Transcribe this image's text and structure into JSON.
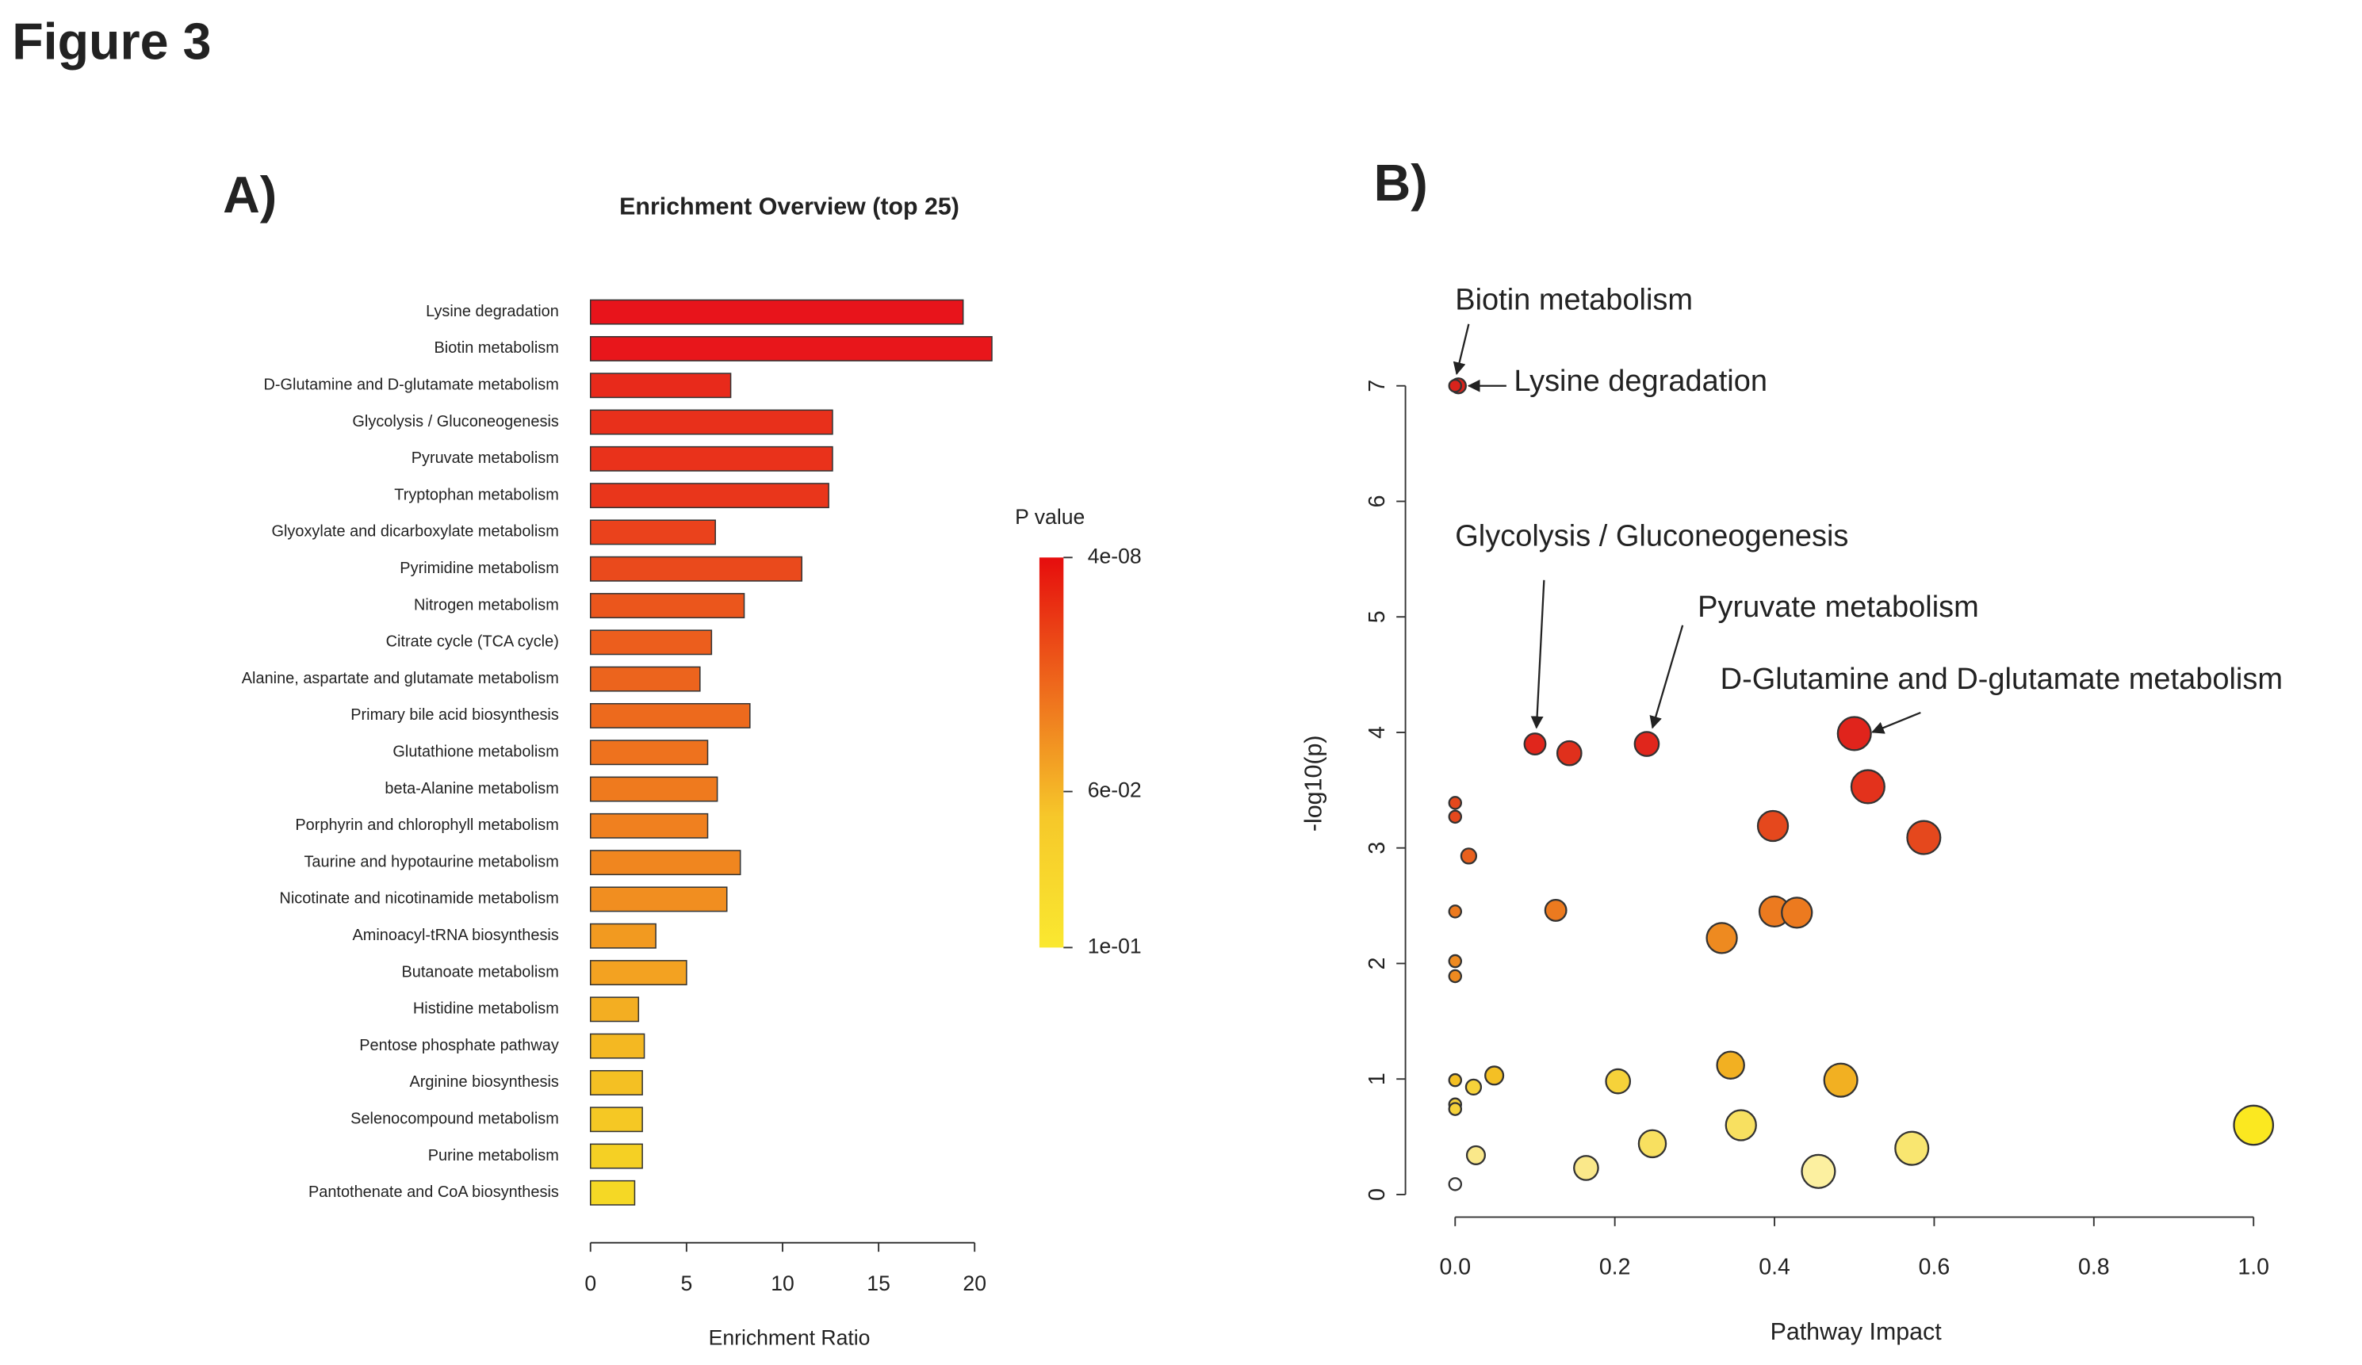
{
  "figure_title": "Figure 3",
  "panel_labels": [
    "A)",
    "B)"
  ],
  "chart_data": [
    {
      "type": "bar",
      "orientation": "horizontal",
      "title": "Enrichment Overview (top 25)",
      "x_label": "Enrichment Ratio",
      "categories": [
        "Lysine degradation",
        "Biotin metabolism",
        "D-Glutamine and D-glutamate metabolism",
        "Glycolysis / Gluconeogenesis",
        "Pyruvate metabolism",
        "Tryptophan metabolism",
        "Glyoxylate and dicarboxylate metabolism",
        "Pyrimidine metabolism",
        "Nitrogen metabolism",
        "Citrate cycle (TCA cycle)",
        "Alanine, aspartate and glutamate metabolism",
        "Primary bile acid biosynthesis",
        "Glutathione metabolism",
        "beta-Alanine metabolism",
        "Porphyrin and chlorophyll metabolism",
        "Taurine and hypotaurine metabolism",
        "Nicotinate and nicotinamide metabolism",
        "Aminoacyl-tRNA biosynthesis",
        "Butanoate metabolism",
        "Histidine metabolism",
        "Pentose phosphate pathway",
        "Arginine biosynthesis",
        "Selenocompound metabolism",
        "Purine metabolism",
        "Pantothenate and CoA biosynthesis"
      ],
      "values": [
        19.4,
        20.9,
        7.3,
        12.6,
        12.6,
        12.4,
        6.5,
        11.0,
        8.0,
        6.3,
        5.7,
        8.3,
        6.1,
        6.6,
        6.1,
        7.8,
        7.1,
        3.4,
        5.0,
        2.5,
        2.8,
        2.7,
        2.7,
        2.7,
        2.3
      ],
      "colors": [
        "#e8141b",
        "#e8161b",
        "#e82a1b",
        "#e8301b",
        "#e9321b",
        "#e9361b",
        "#ea421c",
        "#ea4a1c",
        "#eb561c",
        "#ec5e1d",
        "#ec641d",
        "#ed6a1d",
        "#ee721e",
        "#ef7a1e",
        "#f0801f",
        "#f0861f",
        "#f18e20",
        "#f29a20",
        "#f3a221",
        "#f3ae22",
        "#f4b822",
        "#f4c023",
        "#f5c824",
        "#f5d024",
        "#f5d825"
      ],
      "xlim": [
        0,
        21
      ],
      "xticks": [
        0,
        5,
        10,
        15,
        20
      ],
      "colorbar": {
        "title": "P value",
        "clim": [
          4e-08,
          0.1
        ],
        "colors": [
          "#e60d0d",
          "#ee6a1c",
          "#f6c82a",
          "#fae830"
        ],
        "ticks": [
          {
            "value": 4e-08,
            "label": "4e-08"
          },
          {
            "value": 0.06,
            "label": "6e-02"
          },
          {
            "value": 0.1,
            "label": "1e-01"
          }
        ]
      }
    },
    {
      "type": "scatter",
      "x_label": "Pathway Impact",
      "y_label": "-log10(p)",
      "xlim": [
        0,
        1
      ],
      "ylim": [
        0,
        7
      ],
      "xticks": [
        {
          "value": 0,
          "label": "0.0"
        },
        0.2,
        0.4,
        0.6,
        0.8,
        {
          "value": 1,
          "label": "1.0"
        }
      ],
      "yticks": [
        0,
        1,
        2,
        3,
        4,
        5,
        6,
        7
      ],
      "x": [
        0.004,
        0.0,
        0.1,
        0.143,
        0.24,
        0.5,
        0.517,
        0.587,
        0.398,
        0,
        0,
        0.017,
        0,
        0.126,
        0.4,
        0.428,
        0.334,
        0,
        0,
        0,
        0.023,
        0.049,
        0.204,
        0.345,
        0.483,
        0,
        0,
        0.026,
        0.164,
        0.247,
        0.358,
        0.455,
        0.572,
        1.0,
        0
      ],
      "y": [
        7.0,
        7.0,
        3.9,
        3.82,
        3.9,
        3.99,
        3.53,
        3.09,
        3.19,
        3.39,
        3.27,
        2.93,
        2.45,
        2.46,
        2.45,
        2.44,
        2.22,
        2.02,
        1.89,
        0.99,
        0.93,
        1.03,
        0.98,
        1.12,
        0.99,
        0.78,
        0.74,
        0.34,
        0.23,
        0.44,
        0.6,
        0.2,
        0.4,
        0.6,
        0.09
      ],
      "sizes": [
        5,
        4,
        7,
        8,
        8,
        11,
        11,
        11,
        10,
        4,
        4,
        5,
        4,
        7,
        10,
        10,
        10,
        4,
        4,
        4,
        5,
        6,
        8,
        9,
        11,
        4,
        4,
        6,
        8,
        9,
        10,
        11,
        11,
        13,
        4
      ],
      "colors": [
        "#d9231c",
        "#d9231c",
        "#e0261c",
        "#e0301c",
        "#e0261c",
        "#e0241c",
        "#e3321c",
        "#e5481d",
        "#e5481d",
        "#e5481d",
        "#e5481d",
        "#e8601e",
        "#ec7a1f",
        "#ec7a1f",
        "#ec7a1f",
        "#ec7a1f",
        "#ee8a20",
        "#ee8a20",
        "#ee8a20",
        "#f4c024",
        "#f6d23a",
        "#f4c024",
        "#f6d23a",
        "#f2b022",
        "#f2b022",
        "#f6d23a",
        "#f6d23a",
        "#fae88a",
        "#fae88a",
        "#f8e060",
        "#f8e060",
        "#fcf0a0",
        "#f9e670",
        "#fbe820",
        "#ffffff"
      ],
      "annotations": [
        "Biotin metabolism",
        "Lysine degradation",
        "Glycolysis / Gluconeogenesis",
        "Pyruvate metabolism",
        "D-Glutamine and D-glutamate metabolism"
      ]
    }
  ]
}
